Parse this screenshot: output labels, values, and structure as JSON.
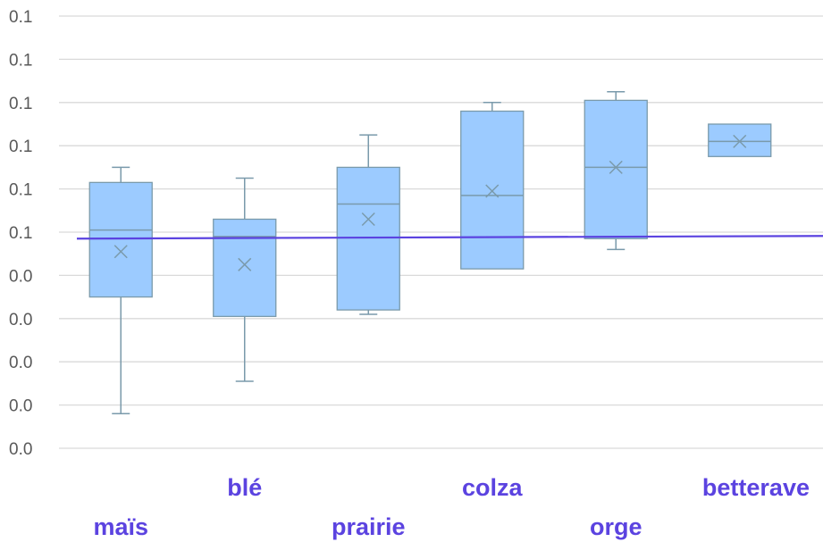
{
  "chart_data": {
    "type": "box",
    "categories": [
      "maïs",
      "blé",
      "prairie",
      "colza",
      "orge",
      "betterave"
    ],
    "y_tick_labels": [
      "0.1",
      "0.1",
      "0.1",
      "0.1",
      "0.1",
      "0.1",
      "0.0",
      "0.0",
      "0.0",
      "0.0",
      "0.0"
    ],
    "ylim": [
      0,
      0.1
    ],
    "grid": true,
    "boxes": [
      {
        "category": "maïs",
        "whisker_low": 0.008,
        "q1": 0.035,
        "median": 0.0505,
        "q3": 0.0615,
        "whisker_high": 0.065,
        "mean": 0.0455
      },
      {
        "category": "blé",
        "whisker_low": 0.0155,
        "q1": 0.0305,
        "median": 0.049,
        "q3": 0.053,
        "whisker_high": 0.0625,
        "mean": 0.0425
      },
      {
        "category": "prairie",
        "whisker_low": 0.031,
        "q1": 0.032,
        "median": 0.0565,
        "q3": 0.065,
        "whisker_high": 0.0725,
        "mean": 0.053
      },
      {
        "category": "colza",
        "whisker_low": 0.0415,
        "q1": 0.0415,
        "median": 0.0585,
        "q3": 0.078,
        "whisker_high": 0.08,
        "mean": 0.0595
      },
      {
        "category": "orge",
        "whisker_low": 0.046,
        "q1": 0.0485,
        "median": 0.065,
        "q3": 0.0805,
        "whisker_high": 0.0825,
        "mean": 0.065
      },
      {
        "category": "betterave",
        "whisker_low": 0.0675,
        "q1": 0.0675,
        "median": 0.071,
        "q3": 0.075,
        "whisker_high": 0.075,
        "mean": 0.071
      }
    ],
    "reference_line": {
      "value": 0.0485,
      "color": "#5b43e0"
    },
    "colors": {
      "box_fill": "#9ccbff",
      "box_stroke": "#7a9aab",
      "whisker": "#7a9aab",
      "gridline": "#d9d9d9",
      "category_label": "#5b43e0",
      "tick_label": "#595959"
    }
  }
}
